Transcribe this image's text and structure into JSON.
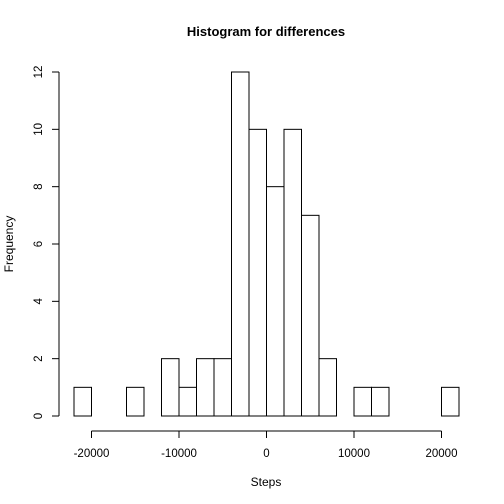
{
  "chart_data": {
    "type": "bar",
    "title": "Histogram for differences",
    "xlabel": "Steps",
    "ylabel": "Frequency",
    "bin_width": 2000,
    "bins": [
      {
        "start": -22000,
        "end": -20000,
        "count": 1
      },
      {
        "start": -20000,
        "end": -18000,
        "count": 0
      },
      {
        "start": -18000,
        "end": -16000,
        "count": 0
      },
      {
        "start": -16000,
        "end": -14000,
        "count": 1
      },
      {
        "start": -14000,
        "end": -12000,
        "count": 0
      },
      {
        "start": -12000,
        "end": -10000,
        "count": 2
      },
      {
        "start": -10000,
        "end": -8000,
        "count": 1
      },
      {
        "start": -8000,
        "end": -6000,
        "count": 2
      },
      {
        "start": -6000,
        "end": -4000,
        "count": 2
      },
      {
        "start": -4000,
        "end": -2000,
        "count": 12
      },
      {
        "start": -2000,
        "end": 0,
        "count": 10
      },
      {
        "start": 0,
        "end": 2000,
        "count": 8
      },
      {
        "start": 2000,
        "end": 4000,
        "count": 10
      },
      {
        "start": 4000,
        "end": 6000,
        "count": 7
      },
      {
        "start": 6000,
        "end": 8000,
        "count": 2
      },
      {
        "start": 8000,
        "end": 10000,
        "count": 0
      },
      {
        "start": 10000,
        "end": 12000,
        "count": 1
      },
      {
        "start": 12000,
        "end": 14000,
        "count": 1
      },
      {
        "start": 14000,
        "end": 16000,
        "count": 0
      },
      {
        "start": 16000,
        "end": 18000,
        "count": 0
      },
      {
        "start": 18000,
        "end": 20000,
        "count": 0
      },
      {
        "start": 20000,
        "end": 22000,
        "count": 1
      }
    ],
    "xlim": [
      -22000,
      22000
    ],
    "ylim": [
      0,
      12
    ],
    "x_ticks": [
      -20000,
      -10000,
      0,
      10000,
      20000
    ],
    "x_tick_labels": [
      "-20000",
      "-10000",
      "0",
      "10000",
      "20000"
    ],
    "y_ticks": [
      0,
      2,
      4,
      6,
      8,
      10,
      12
    ],
    "y_tick_labels": [
      "0",
      "2",
      "4",
      "6",
      "8",
      "10",
      "12"
    ],
    "grid": false,
    "colors": {
      "bar_fill": "#ffffff",
      "bar_stroke": "#000000"
    }
  }
}
